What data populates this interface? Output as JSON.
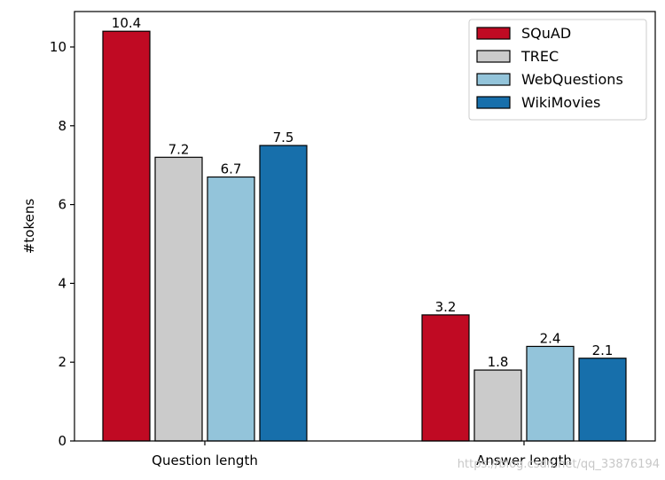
{
  "chart_data": {
    "type": "bar",
    "categories": [
      "Question length",
      "Answer length"
    ],
    "series": [
      {
        "name": "SQuAD",
        "values": [
          10.4,
          3.2
        ],
        "color": "#c00a23"
      },
      {
        "name": "TREC",
        "values": [
          7.2,
          1.8
        ],
        "color": "#cbcbcb"
      },
      {
        "name": "WebQuestions",
        "values": [
          6.7,
          2.4
        ],
        "color": "#93c4da"
      },
      {
        "name": "WikiMovies",
        "values": [
          7.5,
          2.1
        ],
        "color": "#176fab"
      }
    ],
    "title": "",
    "xlabel": "",
    "ylabel": "#tokens",
    "ylim": [
      0,
      10.9
    ],
    "yticks": [
      0,
      2,
      4,
      6,
      8,
      10
    ],
    "grid": false,
    "legend": "top-right"
  },
  "watermark": "https://blog.csdn.net/qq_33876194"
}
